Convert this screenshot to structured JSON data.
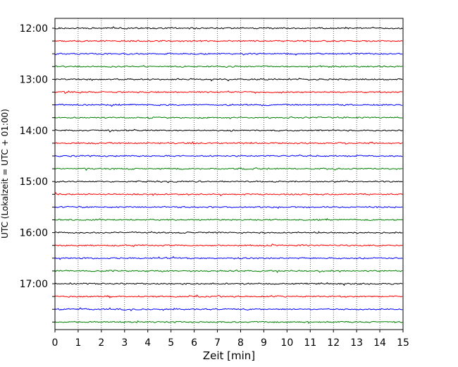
{
  "chart_data": {
    "type": "line",
    "title": "",
    "xlabel": "Zeit  [min]",
    "ylabel": "UTC (Lokalzeit = UTC + 01:00)",
    "xlim": [
      0,
      15
    ],
    "x_ticks": [
      "0",
      "1",
      "2",
      "3",
      "4",
      "5",
      "6",
      "7",
      "8",
      "9",
      "10",
      "11",
      "12",
      "13",
      "14",
      "15"
    ],
    "y_tick_labels": [
      "12:00",
      "13:00",
      "14:00",
      "15:00",
      "16:00",
      "17:00"
    ],
    "trace_start_hour": 12,
    "trace_interval_min": 15,
    "trace_count": 24,
    "trace_colors": [
      "#000000",
      "#ff0000",
      "#0000ff",
      "#008000"
    ],
    "grid": "vertical dotted"
  }
}
